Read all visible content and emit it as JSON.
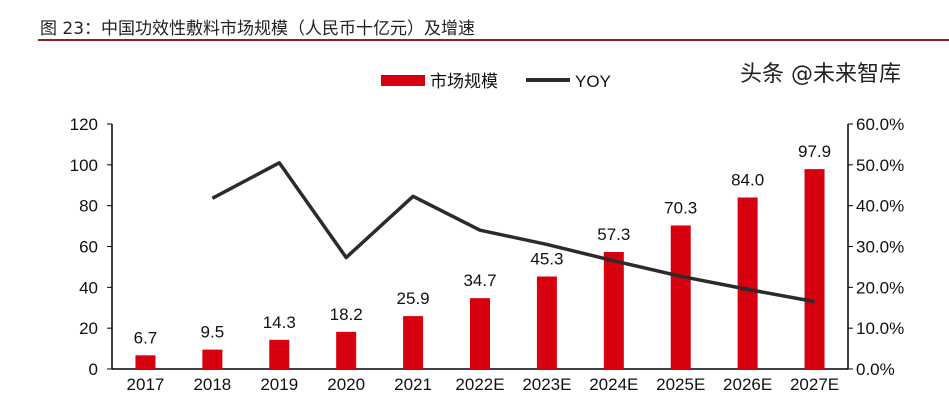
{
  "title": "图 23：中国功效性敷料市场规模（人民币十亿元）及增速",
  "watermark": "头条 @未来智库",
  "chart_data": {
    "type": "bar+line",
    "categories": [
      "2017",
      "2018",
      "2019",
      "2020",
      "2021",
      "2022E",
      "2023E",
      "2024E",
      "2025E",
      "2026E",
      "2027E"
    ],
    "series": [
      {
        "name": "市场规模",
        "type": "bar",
        "axis": "left",
        "color": "#d7000f",
        "values": [
          6.7,
          9.5,
          14.3,
          18.2,
          25.9,
          34.7,
          45.3,
          57.3,
          70.3,
          84.0,
          97.9
        ],
        "labels": [
          "6.7",
          "9.5",
          "14.3",
          "18.2",
          "25.9",
          "34.7",
          "45.3",
          "57.3",
          "70.3",
          "84.0",
          "97.9"
        ]
      },
      {
        "name": "YOY",
        "type": "line",
        "axis": "right",
        "color": "#2b2b2b",
        "values": [
          null,
          41.8,
          50.5,
          27.3,
          42.3,
          34.0,
          30.5,
          26.5,
          22.7,
          19.5,
          16.5
        ]
      }
    ],
    "left_axis": {
      "ylim": [
        0,
        120
      ],
      "ticks": [
        "0",
        "20",
        "40",
        "60",
        "80",
        "100",
        "120"
      ]
    },
    "right_axis": {
      "ylim": [
        0,
        60
      ],
      "ticks": [
        "0.0%",
        "10.0%",
        "20.0%",
        "30.0%",
        "40.0%",
        "50.0%",
        "60.0%"
      ]
    },
    "legend": {
      "placement": "top-center",
      "items": [
        "市场规模",
        "YOY"
      ]
    },
    "grid": false
  }
}
